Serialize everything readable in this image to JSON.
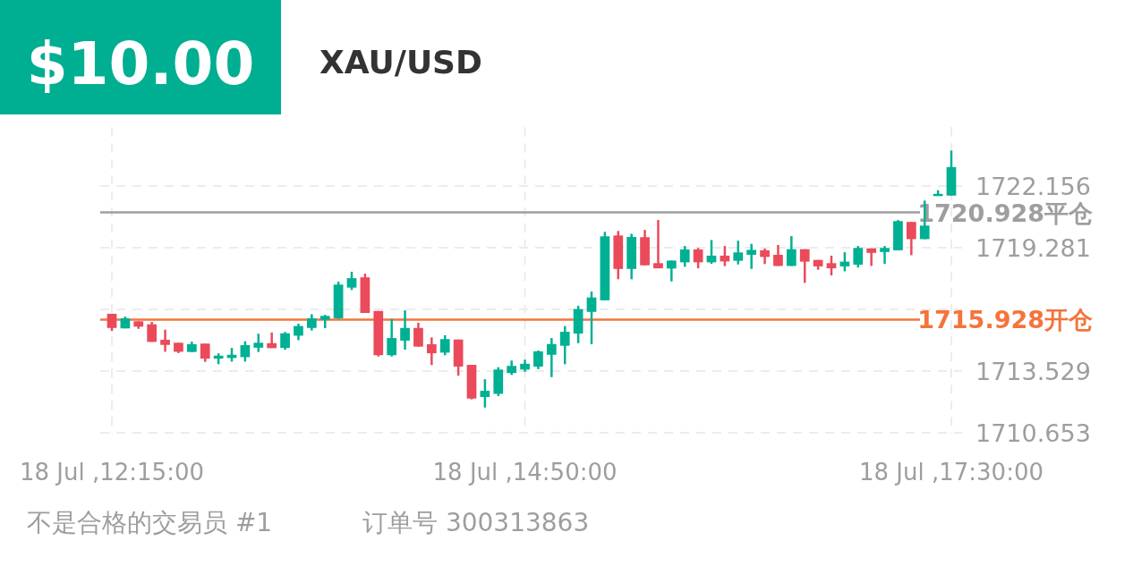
{
  "chart_data": {
    "type": "candlestick",
    "title": "XAU/USD",
    "annotations": [
      "$10.00",
      "不是合格的交易员 #1",
      "订单号 300313863"
    ],
    "categories": [
      "18 Jul ,12:15:00",
      null,
      null,
      null,
      null,
      null,
      null,
      null,
      null,
      null,
      null,
      null,
      null,
      null,
      null,
      null,
      null,
      null,
      null,
      null,
      null,
      null,
      null,
      null,
      null,
      null,
      null,
      null,
      null,
      null,
      null,
      "18 Jul ,14:50:00",
      null,
      null,
      null,
      null,
      null,
      null,
      null,
      null,
      null,
      null,
      null,
      null,
      null,
      null,
      null,
      null,
      null,
      null,
      null,
      null,
      null,
      null,
      null,
      null,
      null,
      null,
      null,
      null,
      null,
      null,
      null,
      "18 Jul ,17:30:00"
    ],
    "ohlc": [
      [
        1716.2,
        1716.2,
        1715.4,
        1715.54
      ],
      [
        1715.52,
        1716.07,
        1715.52,
        1715.99
      ],
      [
        1715.85,
        1715.85,
        1715.5,
        1715.6
      ],
      [
        1715.71,
        1715.82,
        1714.89,
        1714.89
      ],
      [
        1714.99,
        1715.46,
        1714.43,
        1714.75
      ],
      [
        1714.85,
        1714.85,
        1714.37,
        1714.43
      ],
      [
        1714.42,
        1714.9,
        1714.42,
        1714.78
      ],
      [
        1714.81,
        1714.81,
        1713.96,
        1714.11
      ],
      [
        1714.11,
        1714.36,
        1713.85,
        1714.25
      ],
      [
        1714.14,
        1714.61,
        1713.97,
        1714.29
      ],
      [
        1714.18,
        1714.92,
        1713.97,
        1714.74
      ],
      [
        1714.62,
        1715.27,
        1714.42,
        1714.85
      ],
      [
        1714.83,
        1715.33,
        1714.6,
        1714.6
      ],
      [
        1714.61,
        1715.35,
        1714.52,
        1715.29
      ],
      [
        1715.18,
        1715.74,
        1714.97,
        1715.63
      ],
      [
        1715.54,
        1716.18,
        1715.42,
        1715.99
      ],
      [
        1715.92,
        1716.15,
        1715.53,
        1716.1
      ],
      [
        1715.99,
        1717.7,
        1715.96,
        1717.56
      ],
      [
        1717.42,
        1718.16,
        1717.31,
        1717.86
      ],
      [
        1717.9,
        1718.07,
        1716.24,
        1716.24
      ],
      [
        1716.33,
        1716.33,
        1714.21,
        1714.27
      ],
      [
        1714.27,
        1715.96,
        1714.21,
        1715.07
      ],
      [
        1714.95,
        1716.36,
        1714.53,
        1715.54
      ],
      [
        1715.54,
        1715.78,
        1714.67,
        1714.67
      ],
      [
        1714.78,
        1715.1,
        1713.81,
        1714.36
      ],
      [
        1714.39,
        1715.2,
        1714.27,
        1715.02
      ],
      [
        1715.0,
        1715.0,
        1713.32,
        1713.74
      ],
      [
        1713.82,
        1713.82,
        1712.21,
        1712.25
      ],
      [
        1712.32,
        1713.15,
        1711.83,
        1712.61
      ],
      [
        1712.47,
        1713.71,
        1712.37,
        1713.6
      ],
      [
        1713.44,
        1714.02,
        1713.35,
        1713.77
      ],
      [
        1713.6,
        1714.06,
        1713.5,
        1713.87
      ],
      [
        1713.74,
        1714.49,
        1713.62,
        1714.45
      ],
      [
        1714.29,
        1715.07,
        1713.25,
        1714.79
      ],
      [
        1714.71,
        1715.63,
        1713.85,
        1715.36
      ],
      [
        1715.28,
        1716.57,
        1714.83,
        1716.42
      ],
      [
        1716.29,
        1717.24,
        1714.78,
        1716.96
      ],
      [
        1716.83,
        1720.02,
        1716.83,
        1719.81
      ],
      [
        1719.85,
        1720.06,
        1717.81,
        1718.29
      ],
      [
        1718.29,
        1719.93,
        1717.81,
        1719.78
      ],
      [
        1719.77,
        1720.11,
        1718.46,
        1718.46
      ],
      [
        1718.56,
        1720.57,
        1718.32,
        1718.32
      ],
      [
        1718.31,
        1718.68,
        1717.71,
        1718.68
      ],
      [
        1718.6,
        1719.36,
        1718.39,
        1719.2
      ],
      [
        1719.2,
        1719.27,
        1718.32,
        1718.6
      ],
      [
        1718.6,
        1719.64,
        1718.53,
        1718.91
      ],
      [
        1718.91,
        1719.36,
        1718.42,
        1718.64
      ],
      [
        1718.67,
        1719.61,
        1718.5,
        1719.06
      ],
      [
        1718.95,
        1719.46,
        1718.29,
        1719.18
      ],
      [
        1719.16,
        1719.24,
        1718.52,
        1718.85
      ],
      [
        1718.95,
        1719.41,
        1718.43,
        1718.43
      ],
      [
        1718.43,
        1719.82,
        1718.43,
        1719.21
      ],
      [
        1719.21,
        1719.21,
        1717.64,
        1718.63
      ],
      [
        1718.71,
        1718.71,
        1718.25,
        1718.41
      ],
      [
        1718.56,
        1718.91,
        1717.99,
        1718.32
      ],
      [
        1718.41,
        1719.07,
        1718.18,
        1718.63
      ],
      [
        1718.49,
        1719.36,
        1718.36,
        1719.27
      ],
      [
        1719.25,
        1719.25,
        1718.43,
        1719.04
      ],
      [
        1719.08,
        1719.36,
        1718.53,
        1719.27
      ],
      [
        1719.16,
        1720.57,
        1719.16,
        1720.52
      ],
      [
        1720.48,
        1720.48,
        1718.93,
        1719.68
      ],
      [
        1719.68,
        1721.48,
        1719.68,
        1720.31
      ],
      [
        1721.74,
        1721.96,
        1721.74,
        1721.79
      ],
      [
        1721.71,
        1723.81,
        1721.71,
        1723.04
      ]
    ],
    "colors": [
      "#ea4a5a",
      "#00b093",
      "#ea4a5a",
      "#ea4a5a",
      "#ea4a5a",
      "#ea4a5a",
      "#00b093",
      "#ea4a5a",
      "#00b093",
      "#00b093",
      "#00b093",
      "#00b093",
      "#ea4a5a",
      "#00b093",
      "#00b093",
      "#00b093",
      "#00b093",
      "#00b093",
      "#00b093",
      "#ea4a5a",
      "#ea4a5a",
      "#00b093",
      "#00b093",
      "#ea4a5a",
      "#ea4a5a",
      "#00b093",
      "#ea4a5a",
      "#ea4a5a",
      "#00b093",
      "#00b093",
      "#00b093",
      "#00b093",
      "#00b093",
      "#00b093",
      "#00b093",
      "#00b093",
      "#00b093",
      "#00b093",
      "#ea4a5a",
      "#00b093",
      "#ea4a5a",
      "#ea4a5a",
      "#00b093",
      "#00b093",
      "#ea4a5a",
      "#00b093",
      "#ea4a5a",
      "#00b093",
      "#00b093",
      "#ea4a5a",
      "#ea4a5a",
      "#00b093",
      "#ea4a5a",
      "#ea4a5a",
      "#ea4a5a",
      "#00b093",
      "#00b093",
      "#ea4a5a",
      "#00b093",
      "#00b093",
      "#ea4a5a",
      "#00b093",
      "#00b093",
      "#00b093"
    ],
    "ylim": [
      1710.6,
      1724.9
    ],
    "yticks": [
      1710.653,
      1713.529,
      {
        "value": 1716.405,
        "label": null
      },
      1719.281,
      1722.156
    ],
    "grid": true,
    "ref_lines": [
      {
        "axis": "y",
        "value": 1720.928,
        "label": "1720.928平仓",
        "color": "#9e9e9e"
      },
      {
        "axis": "y",
        "value": 1715.928,
        "label": "1715.928开仓",
        "color": "#f4743b"
      }
    ]
  }
}
